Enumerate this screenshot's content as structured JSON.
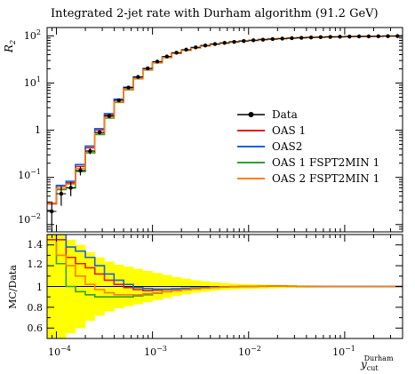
{
  "chart_data": {
    "type": "line",
    "title": "Integrated 2-jet rate with Durham algorithm (91.2 GeV)",
    "ylabel": "R_2",
    "ratio_ylabel": "MC/Data",
    "xlabel": "y_cut^Durham",
    "xlabel_main": "y",
    "xlabel_sub": "cut",
    "xlabel_sup": "Durham",
    "x_scale": "log",
    "y_scale": "log",
    "xlim": [
      8e-05,
      0.4
    ],
    "ylim": [
      0.007,
      150
    ],
    "ratio_ylim": [
      0.5,
      1.5
    ],
    "x_tick_labels": [
      "10^-4",
      "10^-3",
      "10^-2",
      "10^-1"
    ],
    "y_tick_labels": [
      "10^-2",
      "10^-1",
      "1",
      "10^1",
      "10^2"
    ],
    "ratio_tick_labels": [
      "0.6",
      "0.8",
      "1",
      "1.2",
      "1.4"
    ],
    "legend_position": "center-right",
    "bin_edges": [
      8e-05,
      0.0001,
      0.000126,
      0.000158,
      0.0002,
      0.000251,
      0.000316,
      0.000398,
      0.000501,
      0.000631,
      0.000794,
      0.001,
      0.00126,
      0.00158,
      0.002,
      0.00251,
      0.00316,
      0.00398,
      0.00501,
      0.00631,
      0.00794,
      0.01,
      0.0126,
      0.0158,
      0.02,
      0.0251,
      0.0316,
      0.0398,
      0.0501,
      0.0631,
      0.0794,
      0.1,
      0.126,
      0.158,
      0.2,
      0.251,
      0.316,
      0.398
    ],
    "data": {
      "name": "Data",
      "color": "#000000",
      "values": [
        0.019,
        0.045,
        0.06,
        0.14,
        0.36,
        0.9,
        2.0,
        4.3,
        8.0,
        13.5,
        20.5,
        28.5,
        36.5,
        44,
        51,
        57,
        62.5,
        67,
        71,
        74.5,
        77.5,
        80.5,
        83,
        85.5,
        87.5,
        89.5,
        91,
        92.5,
        93.8,
        95,
        95.8,
        96.5,
        97.2,
        97.7,
        98.1,
        98.5,
        98.8
      ],
      "errors_low": [
        0.012,
        0.02,
        0.02,
        0.03,
        0.05,
        0.08,
        0.12,
        0.2,
        0.3,
        0.4,
        0.5,
        0.6,
        0.6,
        0.6,
        0.6,
        0.6,
        0.6,
        0.6,
        0.6,
        0.6,
        0.6,
        0.6,
        0.6,
        0.6,
        0.6,
        0.6,
        0.6,
        0.6,
        0.6,
        0.6,
        0.6,
        0.6,
        0.6,
        0.6,
        0.6,
        0.6,
        0.6
      ],
      "errors_high": [
        0.012,
        0.02,
        0.02,
        0.03,
        0.05,
        0.08,
        0.12,
        0.2,
        0.3,
        0.4,
        0.5,
        0.6,
        0.6,
        0.6,
        0.6,
        0.6,
        0.6,
        0.6,
        0.6,
        0.6,
        0.6,
        0.6,
        0.6,
        0.6,
        0.6,
        0.6,
        0.6,
        0.6,
        0.6,
        0.6,
        0.6,
        0.6,
        0.6,
        0.6,
        0.6,
        0.6,
        0.6
      ]
    },
    "series": [
      {
        "name": "OAS 1",
        "color": "#e41a1c",
        "ratio": [
          1.45,
          1.45,
          1.28,
          1.22,
          1.18,
          1.12,
          1.06,
          1.02,
          0.99,
          0.97,
          0.96,
          0.965,
          0.97,
          0.975,
          0.98,
          0.985,
          0.99,
          0.993,
          0.996,
          0.998,
          1.0,
          1.002,
          1.003,
          1.004,
          1.004,
          1.003,
          1.002,
          1.0,
          1.0,
          1.0,
          1.0,
          1.0,
          1.0,
          1.0,
          1.0,
          1.0,
          1.0
        ]
      },
      {
        "name": "OAS2",
        "color": "#1f5fe0",
        "ratio": [
          1.5,
          1.5,
          1.38,
          1.34,
          1.28,
          1.2,
          1.12,
          1.06,
          1.02,
          0.99,
          0.98,
          0.975,
          0.975,
          0.978,
          0.982,
          0.986,
          0.99,
          0.994,
          0.997,
          0.999,
          1.0,
          1.002,
          1.003,
          1.004,
          1.004,
          1.003,
          1.002,
          1.0,
          1.0,
          1.0,
          1.0,
          1.0,
          1.0,
          1.0,
          1.0,
          1.0,
          1.0
        ]
      },
      {
        "name": "OAS 1 FSPT2MIN 1",
        "color": "#2ca02c",
        "ratio": [
          1.5,
          1.22,
          1.0,
          0.95,
          0.92,
          0.9,
          0.9,
          0.9,
          0.9,
          0.91,
          0.92,
          0.935,
          0.95,
          0.96,
          0.97,
          0.978,
          0.985,
          0.99,
          0.994,
          0.997,
          0.999,
          1.001,
          1.002,
          1.003,
          1.003,
          1.002,
          1.001,
          1.0,
          1.0,
          1.0,
          1.0,
          1.0,
          1.0,
          1.0,
          1.0,
          1.0,
          1.0
        ]
      },
      {
        "name": "OAS 2 FSPT2MIN 1",
        "color": "#ff7f0e",
        "ratio": [
          1.5,
          1.3,
          1.2,
          1.1,
          1.02,
          0.97,
          0.94,
          0.92,
          0.92,
          0.92,
          0.93,
          0.94,
          0.95,
          0.96,
          0.97,
          0.978,
          0.985,
          0.99,
          0.994,
          0.997,
          0.999,
          1.001,
          1.002,
          1.003,
          1.003,
          1.002,
          1.001,
          1.0,
          1.0,
          1.0,
          1.0,
          1.0,
          1.0,
          1.0,
          1.0,
          1.0,
          1.0
        ]
      }
    ],
    "band_color": "#ffff00",
    "band_half_width": [
      0.7,
      0.5,
      0.45,
      0.4,
      0.33,
      0.28,
      0.24,
      0.21,
      0.19,
      0.17,
      0.15,
      0.13,
      0.11,
      0.09,
      0.075,
      0.06,
      0.05,
      0.04,
      0.033,
      0.028,
      0.024,
      0.021,
      0.019,
      0.017,
      0.015,
      0.013,
      0.011,
      0.01,
      0.009,
      0.008,
      0.007,
      0.006,
      0.006,
      0.005,
      0.005,
      0.005,
      0.005
    ]
  }
}
